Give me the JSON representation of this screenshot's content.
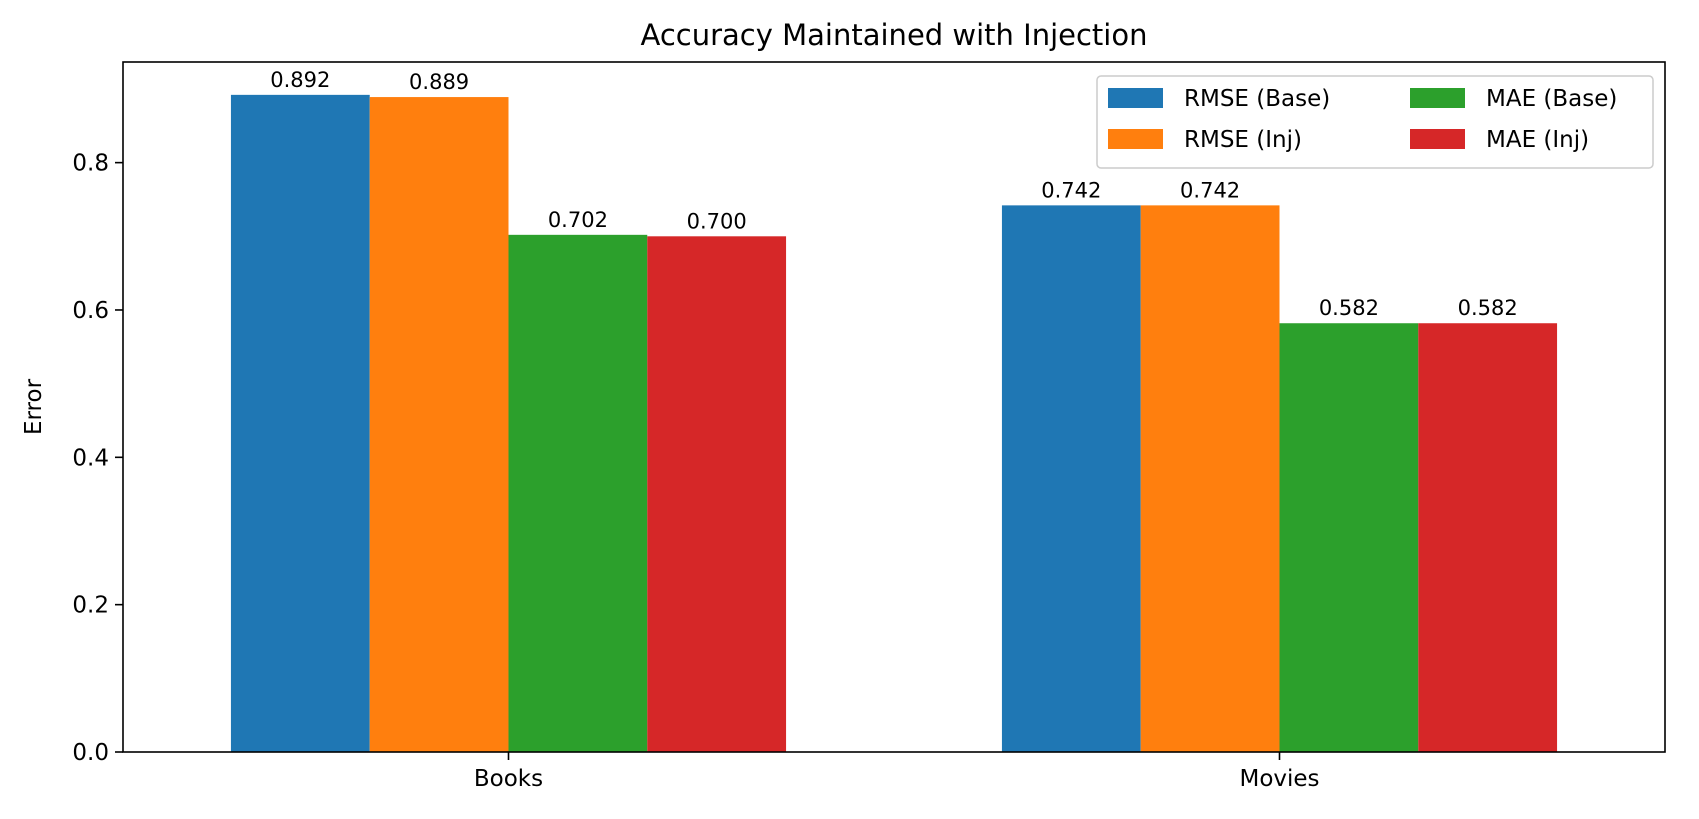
{
  "chart_data": {
    "type": "bar",
    "title": "Accuracy Maintained with Injection",
    "xlabel": "",
    "ylabel": "Error",
    "categories": [
      "Books",
      "Movies"
    ],
    "series": [
      {
        "name": "RMSE (Base)",
        "color": "#1f77b4",
        "values": [
          0.892,
          0.742
        ],
        "labels": [
          "0.892",
          "0.742"
        ]
      },
      {
        "name": "RMSE (Inj)",
        "color": "#ff7f0e",
        "values": [
          0.889,
          0.742
        ],
        "labels": [
          "0.889",
          "0.742"
        ]
      },
      {
        "name": "MAE (Base)",
        "color": "#2ca02c",
        "values": [
          0.702,
          0.582
        ],
        "labels": [
          "0.702",
          "0.582"
        ]
      },
      {
        "name": "MAE (Inj)",
        "color": "#d62728",
        "values": [
          0.7,
          0.582
        ],
        "labels": [
          "0.700",
          "0.582"
        ]
      }
    ],
    "ylim": [
      0,
      0.9366
    ],
    "yticks": [
      0.0,
      0.2,
      0.4,
      0.6,
      0.8
    ],
    "ytick_labels": [
      "0.0",
      "0.2",
      "0.4",
      "0.6",
      "0.8"
    ],
    "grid": false,
    "legend_position": "top-right",
    "legend_columns": 2
  }
}
